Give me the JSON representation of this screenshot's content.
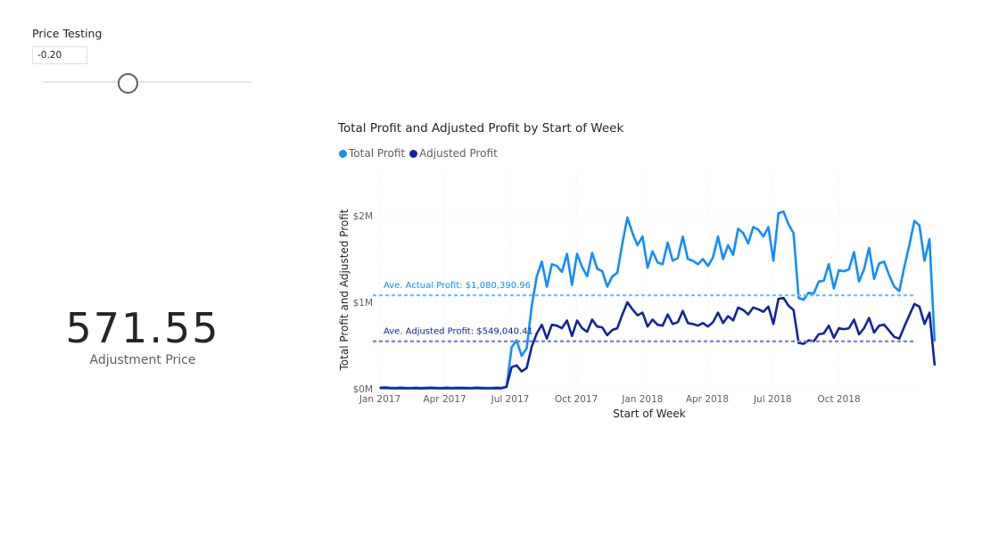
{
  "slicer": {
    "title": "Price Testing",
    "value": "-0.20",
    "slider_value": -0.2
  },
  "card": {
    "value": "571.55",
    "label": "Adjustment Price"
  },
  "colors": {
    "total_profit": "#118dff",
    "adjusted_profit": "#12239e",
    "avg_total_line": "#6fb8ff",
    "avg_adjusted_line": "#7b7fd4"
  },
  "chart_data": {
    "type": "line",
    "title": "Total Profit and Adjusted Profit by Start of Week",
    "xlabel": "Start of Week",
    "ylabel": "Total Profit and Adjusted Profit",
    "x_start": "2017-01-02",
    "x_step_days": 7,
    "xlim": [
      "2017-01-01",
      "2019-01-15"
    ],
    "ylim": [
      0,
      2000000
    ],
    "y_ticks": [
      {
        "value": 0,
        "label": "$0M"
      },
      {
        "value": 1000000,
        "label": "$1M"
      },
      {
        "value": 2000000,
        "label": "$2M"
      }
    ],
    "x_ticks": [
      {
        "date": "2017-01-01",
        "label": "Jan 2017"
      },
      {
        "date": "2017-04-01",
        "label": "Apr 2017"
      },
      {
        "date": "2017-07-01",
        "label": "Jul 2017"
      },
      {
        "date": "2017-10-01",
        "label": "Oct 2017"
      },
      {
        "date": "2018-01-01",
        "label": "Jan 2018"
      },
      {
        "date": "2018-04-01",
        "label": "Apr 2018"
      },
      {
        "date": "2018-07-01",
        "label": "Jul 2018"
      },
      {
        "date": "2018-10-01",
        "label": "Oct 2018"
      }
    ],
    "grid": true,
    "legend": "top-left",
    "series": [
      {
        "name": "Total Profit",
        "values": [
          15000,
          18000,
          12000,
          9000,
          14000,
          11000,
          10000,
          13000,
          8000,
          12000,
          15000,
          11000,
          10000,
          14000,
          9000,
          12000,
          13000,
          11000,
          10000,
          15000,
          12000,
          9000,
          10000,
          14000,
          11000,
          20000,
          480000,
          560000,
          380000,
          470000,
          960000,
          1300000,
          1470000,
          1180000,
          1440000,
          1420000,
          1350000,
          1560000,
          1200000,
          1560000,
          1410000,
          1300000,
          1570000,
          1390000,
          1360000,
          1180000,
          1300000,
          1340000,
          1680000,
          1980000,
          1800000,
          1660000,
          1760000,
          1400000,
          1590000,
          1460000,
          1440000,
          1690000,
          1480000,
          1510000,
          1760000,
          1500000,
          1480000,
          1440000,
          1500000,
          1420000,
          1520000,
          1760000,
          1500000,
          1660000,
          1550000,
          1850000,
          1800000,
          1680000,
          1870000,
          1840000,
          1760000,
          1870000,
          1480000,
          2030000,
          2050000,
          1900000,
          1800000,
          1050000,
          1030000,
          1110000,
          1100000,
          1240000,
          1250000,
          1440000,
          1160000,
          1370000,
          1360000,
          1380000,
          1580000,
          1240000,
          1380000,
          1630000,
          1270000,
          1450000,
          1470000,
          1310000,
          1180000,
          1130000,
          1410000,
          1660000,
          1940000,
          1890000,
          1480000,
          1730000,
          560000
        ],
        "color": "#118dff"
      },
      {
        "name": "Adjusted Profit",
        "values": [
          8000,
          9000,
          6000,
          5000,
          7000,
          5000,
          5000,
          7000,
          4000,
          6000,
          8000,
          6000,
          5000,
          7000,
          5000,
          6000,
          7000,
          6000,
          5000,
          8000,
          6000,
          5000,
          5000,
          7000,
          6000,
          25000,
          250000,
          270000,
          200000,
          240000,
          490000,
          640000,
          740000,
          580000,
          740000,
          730000,
          700000,
          790000,
          610000,
          790000,
          700000,
          660000,
          800000,
          720000,
          710000,
          620000,
          680000,
          700000,
          860000,
          1000000,
          920000,
          850000,
          880000,
          720000,
          800000,
          740000,
          730000,
          860000,
          750000,
          770000,
          900000,
          760000,
          750000,
          730000,
          760000,
          720000,
          770000,
          880000,
          760000,
          840000,
          790000,
          940000,
          910000,
          860000,
          940000,
          920000,
          890000,
          950000,
          750000,
          1040000,
          1050000,
          960000,
          910000,
          530000,
          520000,
          560000,
          550000,
          630000,
          640000,
          730000,
          590000,
          700000,
          690000,
          700000,
          800000,
          630000,
          700000,
          820000,
          650000,
          730000,
          740000,
          670000,
          600000,
          580000,
          720000,
          850000,
          980000,
          950000,
          750000,
          880000,
          280000
        ],
        "color": "#12239e"
      }
    ],
    "reference_lines": [
      {
        "label": "Ave. Actual Profit: $1,080,390.96",
        "value": 1080390.96,
        "color": "#6fb8ff"
      },
      {
        "label": "Ave. Adjusted Profit: $549,040.41",
        "value": 549040.41,
        "color": "#7b7fd4"
      }
    ]
  }
}
